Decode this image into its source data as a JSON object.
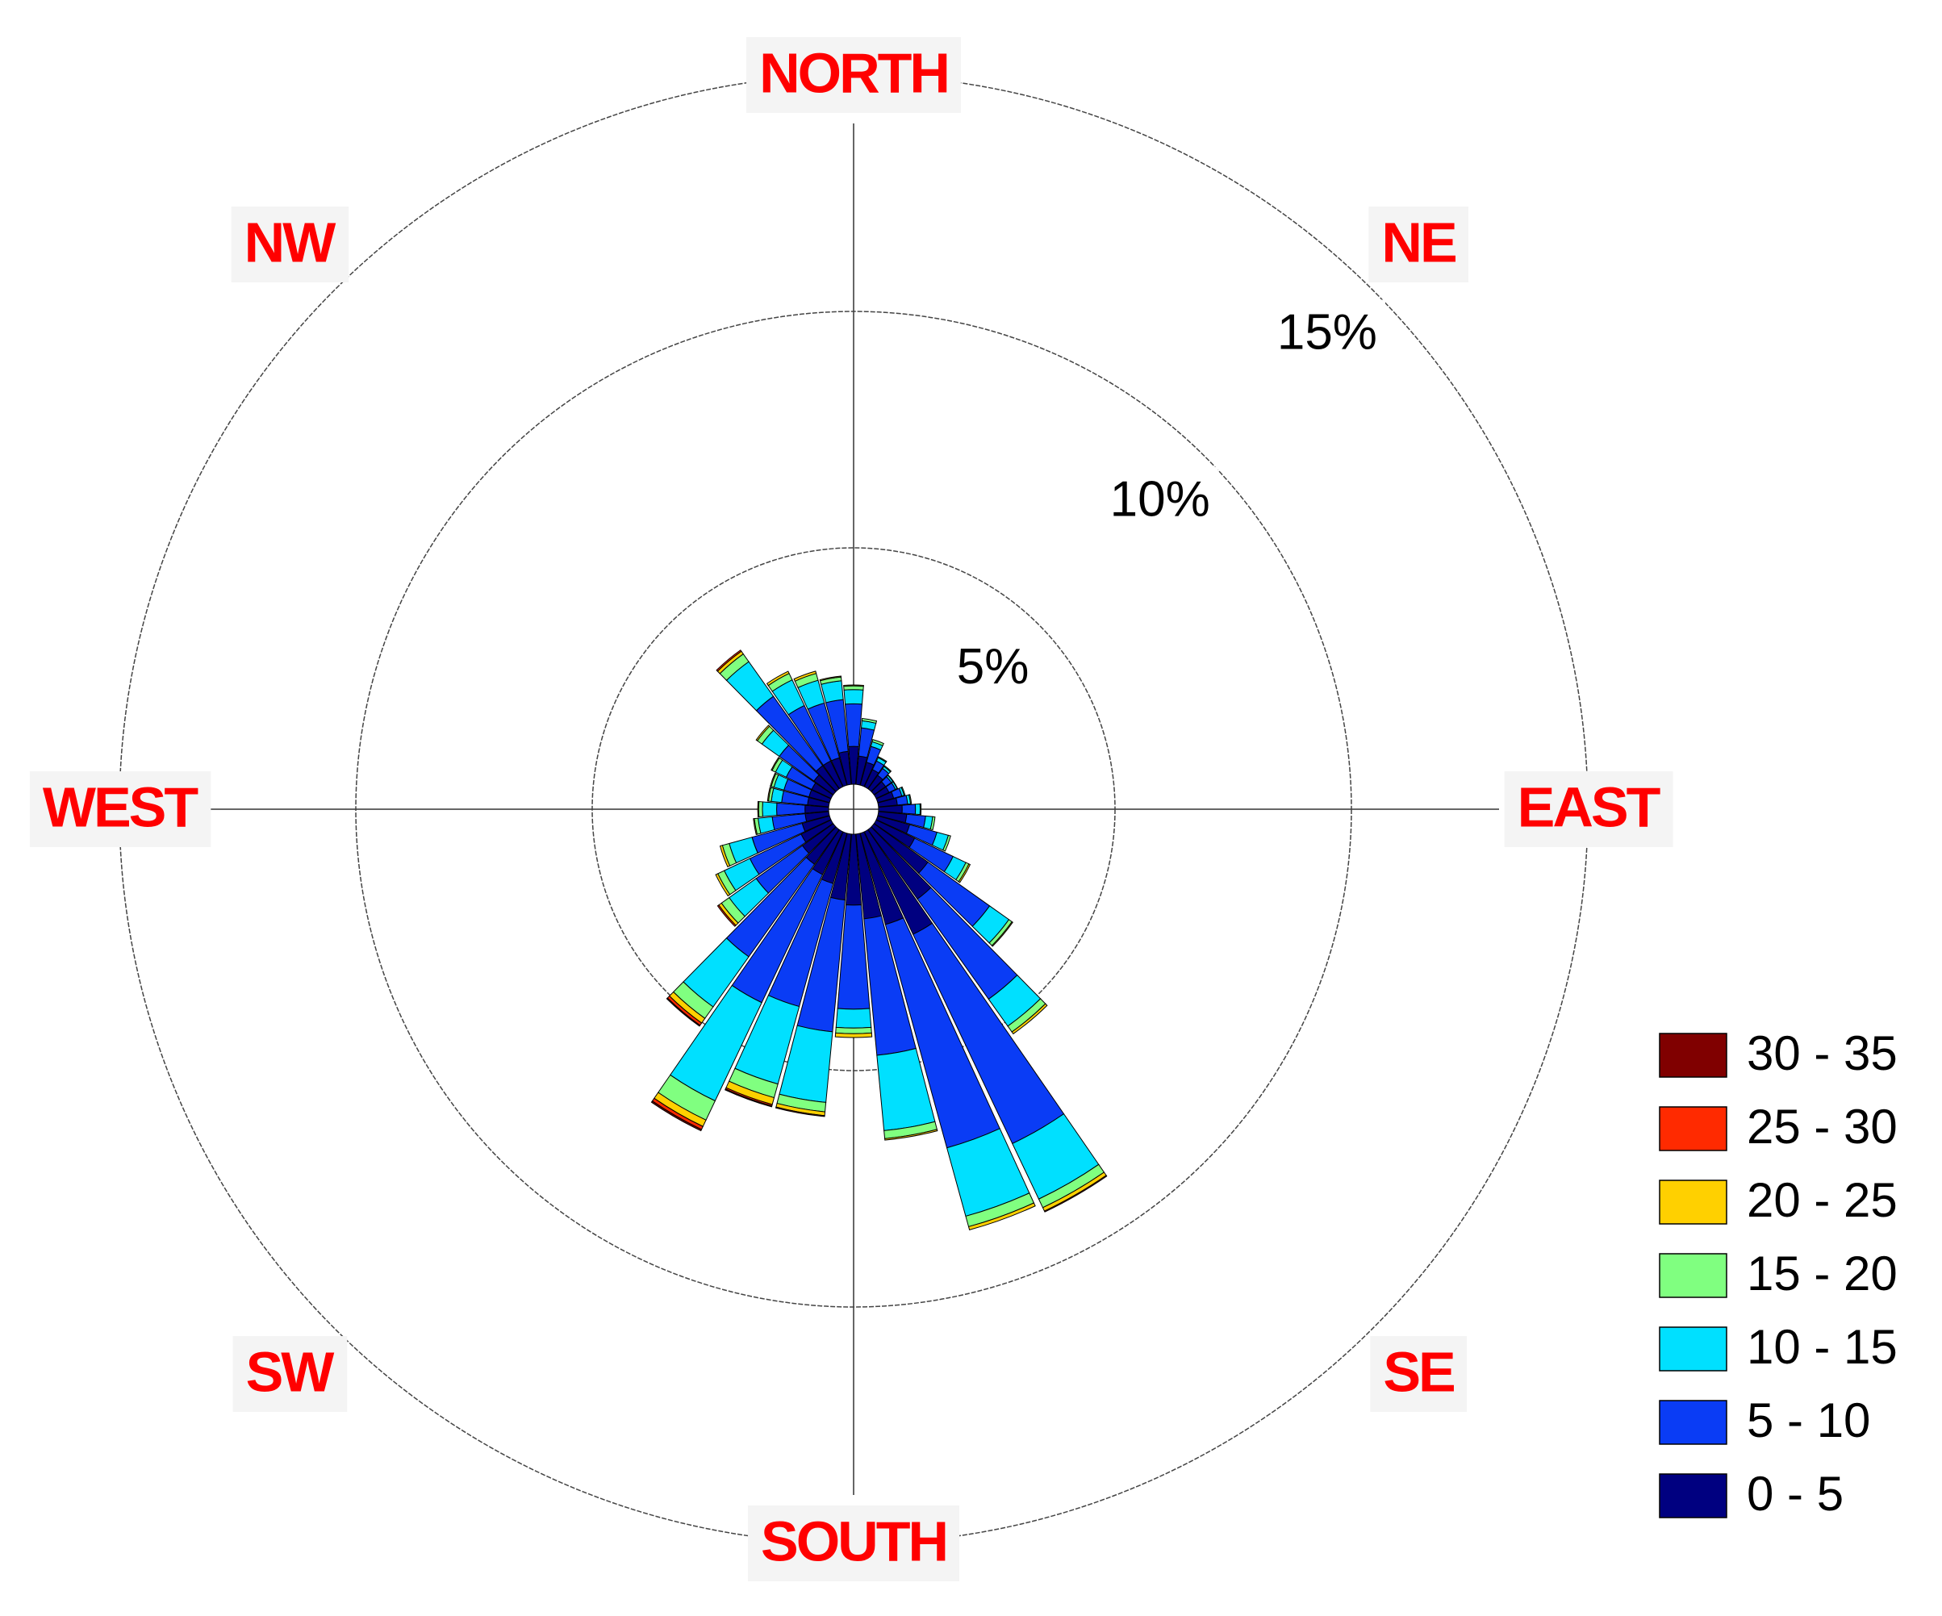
{
  "chart_data": {
    "type": "windrose",
    "x": [
      0,
      10,
      20,
      30,
      40,
      50,
      60,
      70,
      80,
      90,
      100,
      110,
      120,
      130,
      140,
      150,
      160,
      170,
      180,
      190,
      200,
      210,
      220,
      230,
      240,
      250,
      260,
      270,
      280,
      290,
      300,
      310,
      320,
      330,
      340,
      350
    ],
    "compass_labels": [
      "NORTH",
      "NE",
      "EAST",
      "SE",
      "SOUTH",
      "SW",
      "WEST",
      "NW"
    ],
    "rlim": [
      0,
      15
    ],
    "rticks": [
      {
        "value": 5,
        "label": "5%"
      },
      {
        "value": 10,
        "label": "10%"
      },
      {
        "value": 15,
        "label": "15%"
      }
    ],
    "series": [
      {
        "name": "0 - 5",
        "color": "#000080",
        "values": [
          0.8,
          0.6,
          0.5,
          0.4,
          0.35,
          0.3,
          0.3,
          0.35,
          0.4,
          0.5,
          0.6,
          0.7,
          0.9,
          1.4,
          1.8,
          2.4,
          2.0,
          1.8,
          1.5,
          1.4,
          1.1,
          1.0,
          0.9,
          0.8,
          0.7,
          0.6,
          0.5,
          0.5,
          0.45,
          0.45,
          0.45,
          0.5,
          0.6,
          0.6,
          0.6,
          0.7
        ]
      },
      {
        "name": "5 - 10",
        "color": "#0a3cf5",
        "values": [
          0.9,
          0.6,
          0.35,
          0.2,
          0.18,
          0.15,
          0.15,
          0.18,
          0.22,
          0.28,
          0.4,
          0.6,
          0.9,
          1.6,
          2.6,
          4.9,
          4.9,
          2.9,
          2.2,
          2.8,
          2.7,
          3.0,
          2.4,
          1.2,
          1.2,
          1.1,
          0.7,
          0.6,
          0.55,
          0.55,
          0.6,
          0.9,
          1.8,
          1.3,
          1.2,
          1.1
        ]
      },
      {
        "name": "10 - 15",
        "color": "#00e0ff",
        "values": [
          0.3,
          0.15,
          0.1,
          0.08,
          0.05,
          0.04,
          0.04,
          0.05,
          0.06,
          0.1,
          0.15,
          0.25,
          0.3,
          0.5,
          0.7,
          1.3,
          1.5,
          1.6,
          0.4,
          1.5,
          1.7,
          2.3,
          1.3,
          0.7,
          0.6,
          0.5,
          0.3,
          0.3,
          0.22,
          0.22,
          0.25,
          0.45,
          0.9,
          0.6,
          0.5,
          0.4
        ]
      },
      {
        "name": "15 - 20",
        "color": "#80ff80",
        "values": [
          0.08,
          0.05,
          0.05,
          0.02,
          0.02,
          0.01,
          0.01,
          0.02,
          0.02,
          0.02,
          0.05,
          0.05,
          0.07,
          0.08,
          0.15,
          0.2,
          0.23,
          0.17,
          0.12,
          0.2,
          0.3,
          0.45,
          0.3,
          0.2,
          0.15,
          0.15,
          0.08,
          0.08,
          0.06,
          0.06,
          0.08,
          0.12,
          0.2,
          0.15,
          0.15,
          0.08
        ]
      },
      {
        "name": "20 - 25",
        "color": "#ffd000",
        "values": [
          0.02,
          0,
          0,
          0,
          0,
          0,
          0,
          0,
          0,
          0,
          0,
          0,
          0.03,
          0.02,
          0.05,
          0.08,
          0.07,
          0.03,
          0.08,
          0.08,
          0.15,
          0.15,
          0.12,
          0.07,
          0.05,
          0.05,
          0.02,
          0.02,
          0.02,
          0.02,
          0.02,
          0.03,
          0.07,
          0.05,
          0.05,
          0.02
        ]
      },
      {
        "name": "25 - 30",
        "color": "#ff2a00",
        "values": [
          0,
          0,
          0,
          0,
          0,
          0,
          0,
          0,
          0,
          0,
          0,
          0,
          0,
          0,
          0,
          0.02,
          0,
          0,
          0,
          0.02,
          0.03,
          0.07,
          0.06,
          0.03,
          0,
          0,
          0,
          0,
          0,
          0,
          0,
          0,
          0.03,
          0,
          0,
          0
        ]
      },
      {
        "name": "30 - 35",
        "color": "#800000",
        "values": [
          0,
          0,
          0,
          0,
          0,
          0,
          0,
          0,
          0,
          0,
          0,
          0,
          0,
          0,
          0,
          0,
          0,
          0,
          0,
          0,
          0.02,
          0.03,
          0.02,
          0,
          0,
          0,
          0,
          0,
          0,
          0,
          0,
          0,
          0,
          0,
          0,
          0
        ]
      }
    ]
  }
}
